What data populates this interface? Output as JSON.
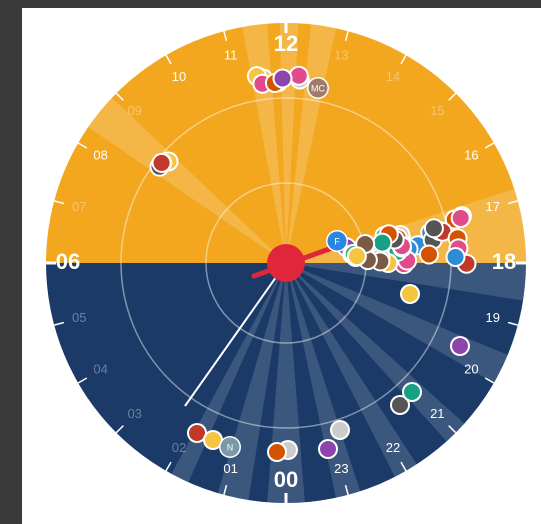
{
  "clock": {
    "hour_labels": [
      "00",
      "01",
      "02",
      "03",
      "04",
      "05",
      "06",
      "07",
      "08",
      "09",
      "10",
      "11",
      "12",
      "13",
      "14",
      "15",
      "16",
      "17",
      "18",
      "19",
      "20",
      "21",
      "22",
      "23"
    ],
    "avatar_initials": [
      "MC",
      "F",
      "N"
    ]
  }
}
